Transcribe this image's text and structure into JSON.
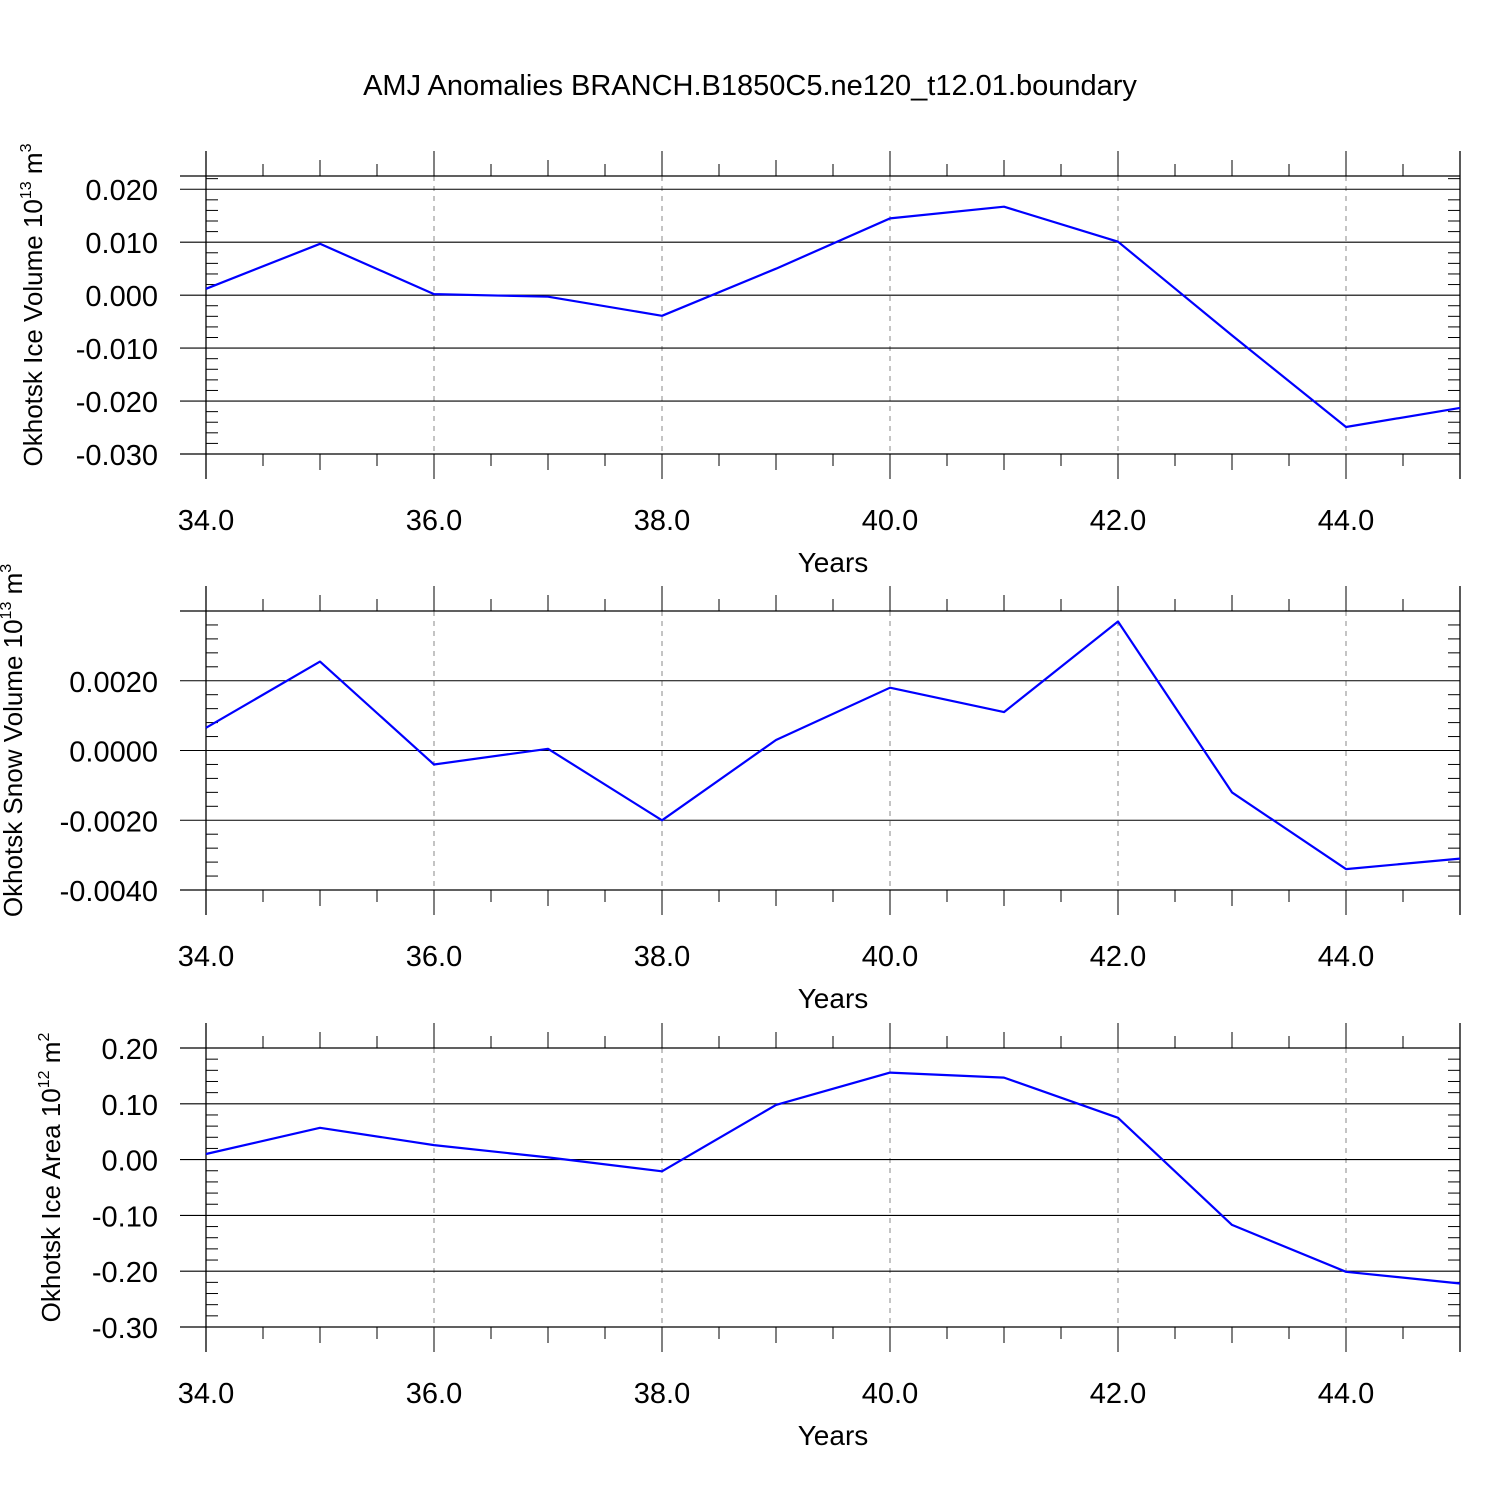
{
  "title": "AMJ Anomalies BRANCH.B1850C5.ne120_t12.01.boundary",
  "chart_data": [
    {
      "type": "line",
      "ylabel": "Okhotsk Ice Volume 10",
      "ylabel_exp": "13",
      "ylabel_unit": " m",
      "ylabel_unit_exp": "3",
      "xlabel": "Years",
      "xlim": [
        34,
        45
      ],
      "ylim": [
        -0.03,
        0.0225
      ],
      "xticks": [
        34,
        36,
        38,
        40,
        42,
        44
      ],
      "xtick_labels": [
        "34.0",
        "36.0",
        "38.0",
        "40.0",
        "42.0",
        "44.0"
      ],
      "yticks": [
        -0.03,
        -0.02,
        -0.01,
        0.0,
        0.01,
        0.02
      ],
      "ytick_labels": [
        "-0.030",
        "-0.020",
        "-0.010",
        "0.000",
        "0.010",
        "0.020"
      ],
      "x": [
        34,
        35,
        36,
        37,
        38,
        39,
        40,
        41,
        42,
        43,
        44,
        45
      ],
      "series": [
        {
          "color": "#0000ff",
          "values": [
            0.0012,
            0.0097,
            0.0002,
            -0.0003,
            -0.0039,
            0.005,
            0.0145,
            0.0167,
            0.0101,
            -0.0076,
            -0.0249,
            -0.0213
          ]
        }
      ],
      "grid": "vertical dashed at labeled x ticks"
    },
    {
      "type": "line",
      "ylabel": "Okhotsk Snow Volume 10",
      "ylabel_exp": "13",
      "ylabel_unit": " m",
      "ylabel_unit_exp": "3",
      "xlabel": "Years",
      "xlim": [
        34,
        45
      ],
      "ylim": [
        -0.004,
        0.004
      ],
      "xticks": [
        34,
        36,
        38,
        40,
        42,
        44
      ],
      "xtick_labels": [
        "34.0",
        "36.0",
        "38.0",
        "40.0",
        "42.0",
        "44.0"
      ],
      "yticks": [
        -0.004,
        -0.002,
        0.0,
        0.002
      ],
      "ytick_labels": [
        "-0.0040",
        "-0.0020",
        "0.0000",
        "0.0020"
      ],
      "x": [
        34,
        35,
        36,
        37,
        38,
        39,
        40,
        41,
        42,
        43,
        44,
        45
      ],
      "series": [
        {
          "color": "#0000ff",
          "values": [
            0.00065,
            0.00255,
            -0.0004,
            5e-05,
            -0.002,
            0.0003,
            0.0018,
            0.0011,
            0.0037,
            -0.0012,
            -0.0034,
            -0.0031
          ]
        }
      ],
      "grid": "vertical dashed at labeled x ticks"
    },
    {
      "type": "line",
      "ylabel": "Okhotsk Ice Area 10",
      "ylabel_exp": "12",
      "ylabel_unit": " m",
      "ylabel_unit_exp": "2",
      "xlabel": "Years",
      "xlim": [
        34,
        45
      ],
      "ylim": [
        -0.3,
        0.2
      ],
      "xticks": [
        34,
        36,
        38,
        40,
        42,
        44
      ],
      "xtick_labels": [
        "34.0",
        "36.0",
        "38.0",
        "40.0",
        "42.0",
        "44.0"
      ],
      "yticks": [
        -0.3,
        -0.2,
        -0.1,
        0.0,
        0.1,
        0.2
      ],
      "ytick_labels": [
        "-0.30",
        "-0.20",
        "-0.10",
        "0.00",
        "0.10",
        "0.20"
      ],
      "x": [
        34,
        35,
        36,
        37,
        38,
        39,
        40,
        41,
        42,
        43,
        44,
        45
      ],
      "series": [
        {
          "color": "#0000ff",
          "values": [
            0.01,
            0.057,
            0.026,
            0.004,
            -0.021,
            0.098,
            0.156,
            0.147,
            0.075,
            -0.117,
            -0.201,
            -0.222
          ]
        }
      ],
      "grid": "vertical dashed at labeled x ticks"
    }
  ]
}
